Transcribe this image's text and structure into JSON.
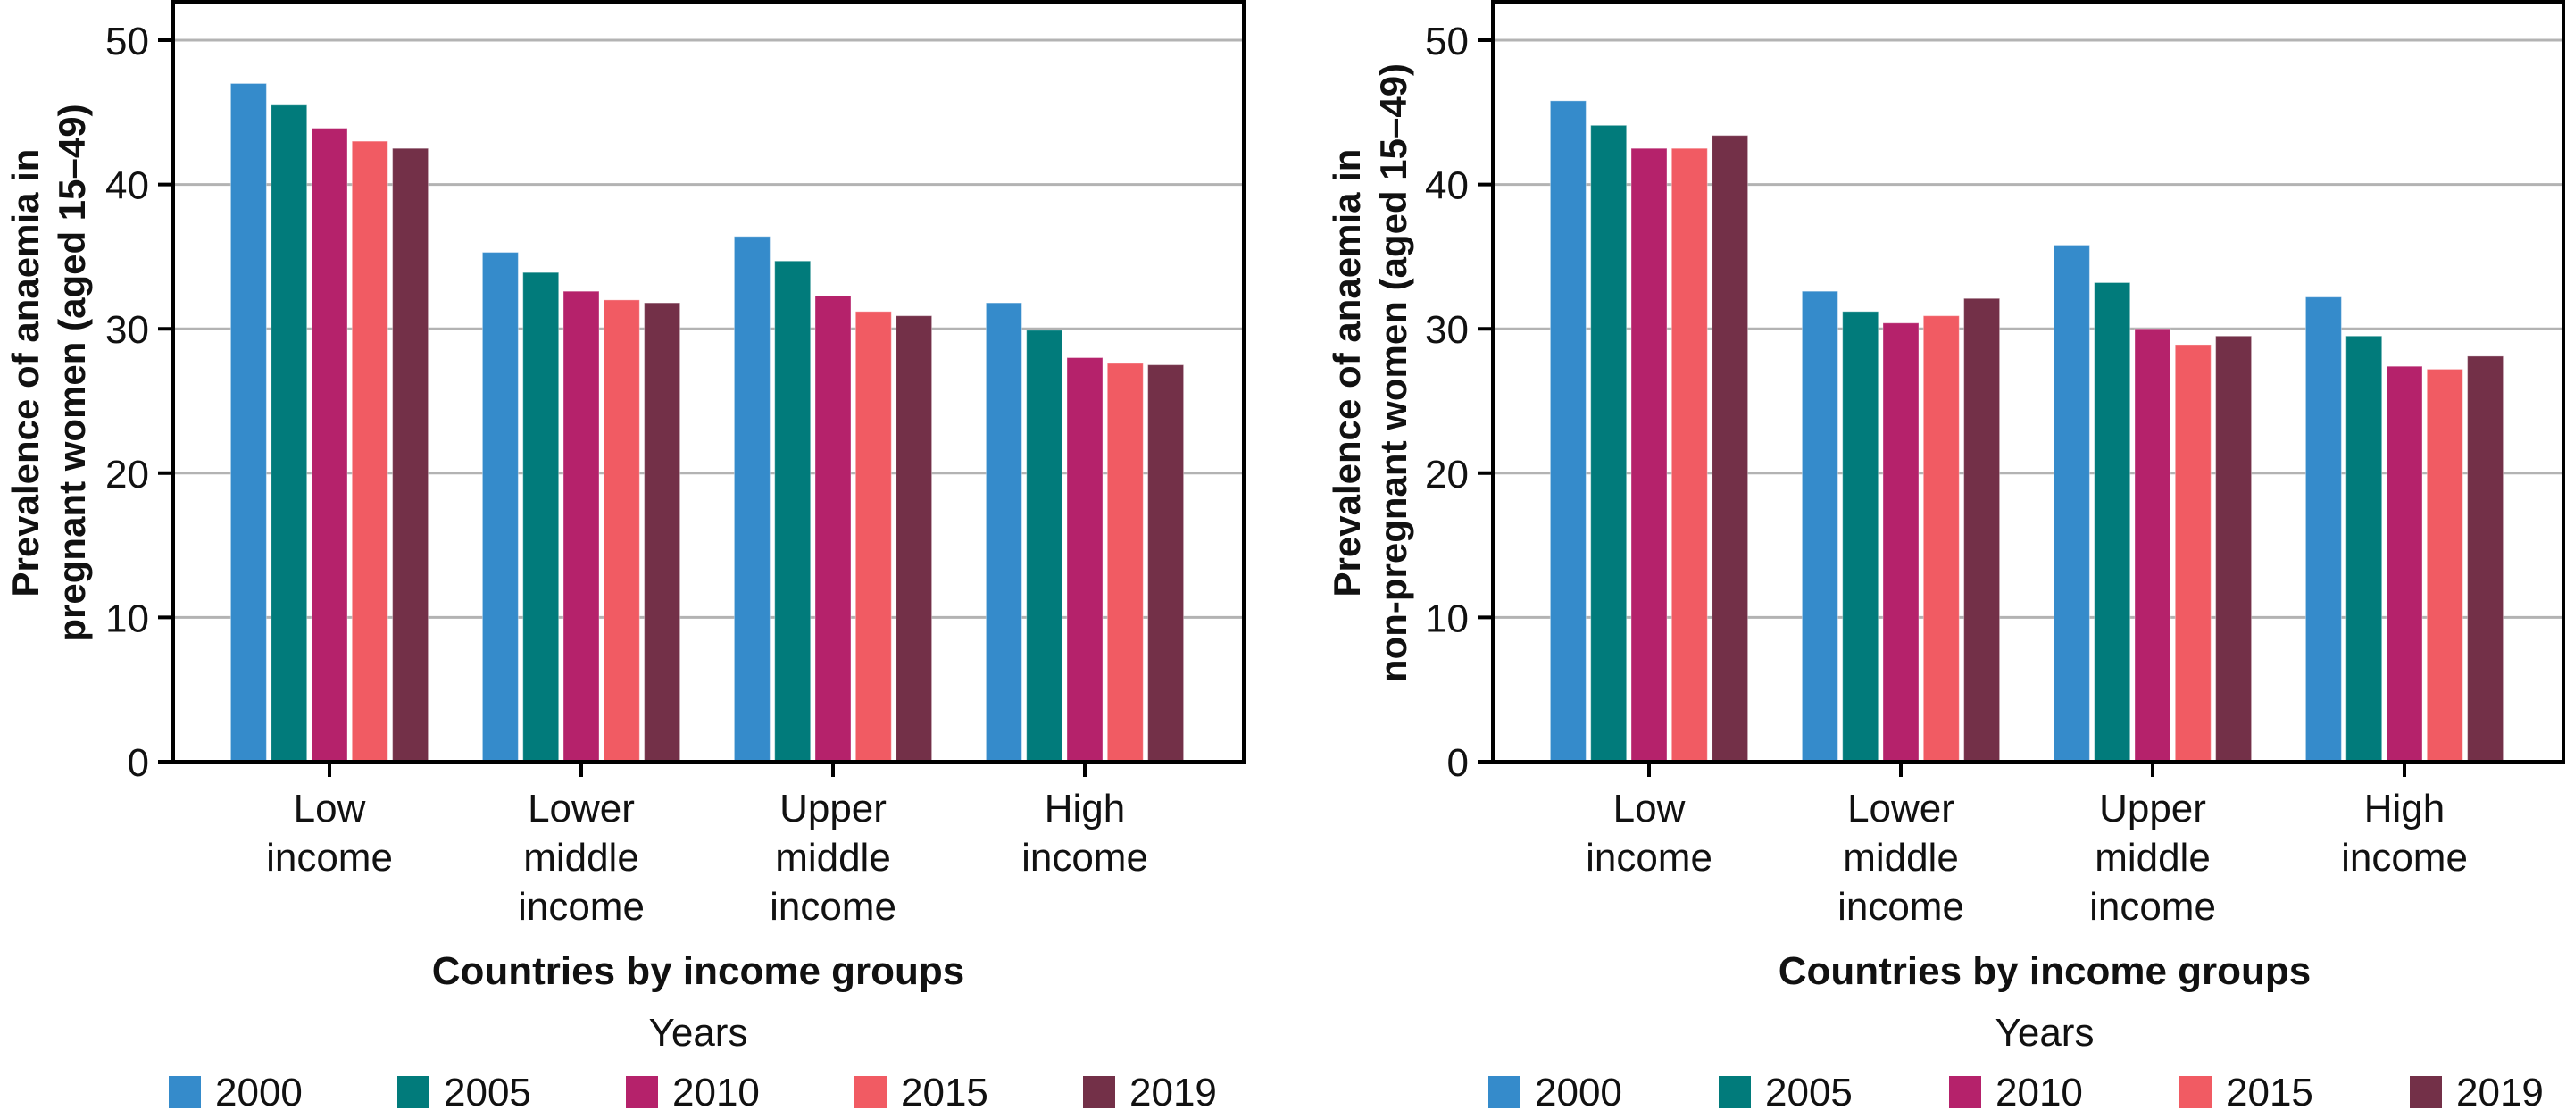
{
  "chart_data": [
    {
      "type": "bar",
      "title": "",
      "xlabel": "Countries by income groups",
      "ylabel": [
        "Prevalence of anaemia in",
        "pregnant women (aged 15–49)"
      ],
      "categories": [
        [
          "Low",
          "income"
        ],
        [
          "Lower",
          "middle",
          "income"
        ],
        [
          "Upper",
          "middle",
          "income"
        ],
        [
          "High",
          "income"
        ]
      ],
      "series": [
        {
          "name": "2000",
          "color": "#358BCB",
          "values": [
            47.0,
            35.3,
            36.4,
            31.8
          ]
        },
        {
          "name": "2005",
          "color": "#017B7B",
          "values": [
            45.5,
            33.9,
            34.7,
            29.9
          ]
        },
        {
          "name": "2010",
          "color": "#B5226B",
          "values": [
            43.9,
            32.6,
            32.3,
            28.0
          ]
        },
        {
          "name": "2015",
          "color": "#F15B63",
          "values": [
            43.0,
            32.0,
            31.2,
            27.6
          ]
        },
        {
          "name": "2019",
          "color": "#733048",
          "values": [
            42.5,
            31.8,
            30.9,
            27.5
          ]
        }
      ],
      "ylim": [
        0,
        52.7
      ],
      "yticks": [
        0,
        10,
        20,
        30,
        40,
        50
      ],
      "grid": true,
      "legend": {
        "title": "Years",
        "placement": "bottom"
      }
    },
    {
      "type": "bar",
      "title": "",
      "xlabel": "Countries by income groups",
      "ylabel": [
        "Prevalence of anaemia in",
        "non-pregnant women (aged 15–49)"
      ],
      "categories": [
        [
          "Low",
          "income"
        ],
        [
          "Lower",
          "middle",
          "income"
        ],
        [
          "Upper",
          "middle",
          "income"
        ],
        [
          "High",
          "income"
        ]
      ],
      "series": [
        {
          "name": "2000",
          "color": "#358BCB",
          "values": [
            45.8,
            32.6,
            35.8,
            32.2
          ]
        },
        {
          "name": "2005",
          "color": "#017B7B",
          "values": [
            44.1,
            31.2,
            33.2,
            29.5
          ]
        },
        {
          "name": "2010",
          "color": "#B5226B",
          "values": [
            42.5,
            30.4,
            30.0,
            27.4
          ]
        },
        {
          "name": "2015",
          "color": "#F15B63",
          "values": [
            42.5,
            30.9,
            28.9,
            27.2
          ]
        },
        {
          "name": "2019",
          "color": "#733048",
          "values": [
            43.4,
            32.1,
            29.5,
            28.1
          ]
        }
      ],
      "ylim": [
        0,
        52.7
      ],
      "yticks": [
        0,
        10,
        20,
        30,
        40,
        50
      ],
      "grid": true,
      "legend": {
        "title": "Years",
        "placement": "bottom"
      }
    }
  ]
}
